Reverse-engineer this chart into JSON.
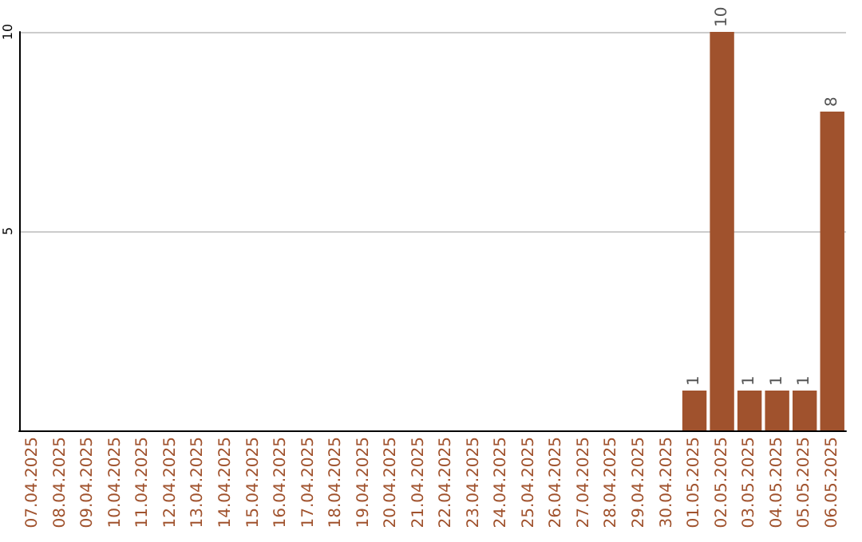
{
  "chart_data": {
    "type": "bar",
    "categories": [
      "07.04.2025",
      "08.04.2025",
      "09.04.2025",
      "10.04.2025",
      "11.04.2025",
      "12.04.2025",
      "13.04.2025",
      "14.04.2025",
      "15.04.2025",
      "16.04.2025",
      "17.04.2025",
      "18.04.2025",
      "19.04.2025",
      "20.04.2025",
      "21.04.2025",
      "22.04.2025",
      "23.04.2025",
      "24.04.2025",
      "25.04.2025",
      "26.04.2025",
      "27.04.2025",
      "28.04.2025",
      "29.04.2025",
      "30.04.2025",
      "01.05.2025",
      "02.05.2025",
      "03.05.2025",
      "04.05.2025",
      "05.05.2025",
      "06.05.2025"
    ],
    "values": [
      0,
      0,
      0,
      0,
      0,
      0,
      0,
      0,
      0,
      0,
      0,
      0,
      0,
      0,
      0,
      0,
      0,
      0,
      0,
      0,
      0,
      0,
      0,
      0,
      1,
      10,
      1,
      1,
      1,
      8
    ],
    "value_labels": [
      null,
      null,
      null,
      null,
      null,
      null,
      null,
      null,
      null,
      null,
      null,
      null,
      null,
      null,
      null,
      null,
      null,
      null,
      null,
      null,
      null,
      null,
      null,
      null,
      "1",
      "10",
      "1",
      "1",
      "1",
      "8"
    ],
    "color": "#a0522d",
    "ylim": [
      0,
      10
    ],
    "yticks": [
      5,
      10
    ],
    "grid": "y"
  }
}
